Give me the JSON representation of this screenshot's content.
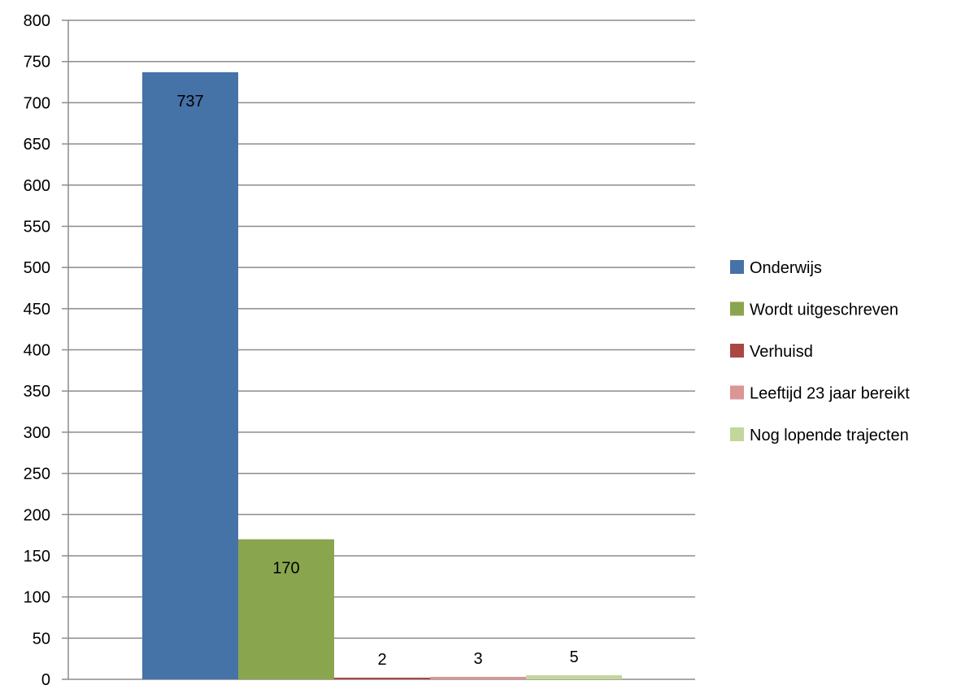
{
  "chart_data": {
    "type": "bar",
    "title": "",
    "xlabel": "",
    "ylabel": "",
    "ylim": [
      0,
      800
    ],
    "ytick_step": 50,
    "yticks": [
      "0",
      "50",
      "100",
      "150",
      "200",
      "250",
      "300",
      "350",
      "400",
      "450",
      "500",
      "550",
      "600",
      "650",
      "700",
      "750",
      "800"
    ],
    "grid": true,
    "legend_position": "right",
    "series": [
      {
        "name": "Onderwijs",
        "value": 737,
        "label": "737",
        "color": "#4572a7"
      },
      {
        "name": "Wordt uitgeschreven",
        "value": 170,
        "label": "170",
        "color": "#89a54e"
      },
      {
        "name": "Verhuisd",
        "value": 2,
        "label": "2",
        "color": "#aa4643"
      },
      {
        "name": "Leeftijd 23 jaar bereikt",
        "value": 3,
        "label": "3",
        "color": "#d99694"
      },
      {
        "name": "Nog lopende trajecten",
        "value": 5,
        "label": "5",
        "color": "#c3d69b"
      }
    ]
  }
}
